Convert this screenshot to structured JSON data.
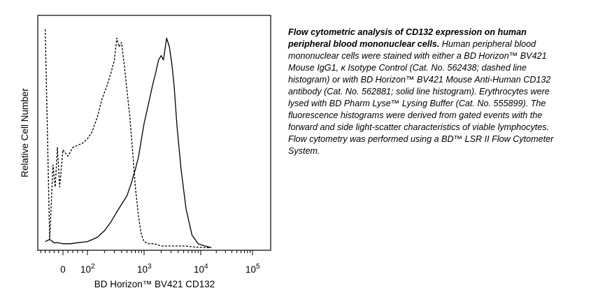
{
  "chart_data": {
    "type": "line",
    "title": "",
    "xlabel": "BD Horizon™ BV421 CD132",
    "ylabel": "Relative Cell Number",
    "x_scale": "biexponential",
    "x_tick_labels": [
      {
        "value": 0,
        "text": "0"
      },
      {
        "value": 100,
        "base": "10",
        "exp": "2"
      },
      {
        "value": 1000,
        "base": "10",
        "exp": "3"
      },
      {
        "value": 10000,
        "base": "10",
        "exp": "4"
      },
      {
        "value": 100000,
        "base": "10",
        "exp": "5"
      }
    ],
    "y_ticks": false,
    "grid": false,
    "legend": "none",
    "series": [
      {
        "style": "dashed",
        "x": [
          -80,
          -60,
          -45,
          -35,
          -25,
          -15,
          0,
          20,
          40,
          60,
          80,
          100,
          120,
          150,
          180,
          220,
          260,
          300,
          330,
          360,
          400,
          450,
          500,
          560,
          620,
          700,
          800,
          900,
          1000,
          1200,
          1500,
          2000,
          3000,
          5000,
          8000,
          12000,
          16000
        ],
        "y": [
          100,
          4,
          38,
          28,
          46,
          28,
          45,
          42,
          46,
          47,
          48,
          50,
          53,
          60,
          68,
          74,
          80,
          86,
          96,
          92,
          94,
          83,
          72,
          60,
          46,
          28,
          14,
          6,
          3,
          2,
          2,
          1,
          1,
          1,
          0.5,
          0.3,
          0.2
        ]
      },
      {
        "style": "solid",
        "x": [
          -80,
          -60,
          -40,
          -20,
          0,
          30,
          60,
          100,
          150,
          200,
          260,
          320,
          400,
          500,
          600,
          700,
          800,
          900,
          1000,
          1200,
          1400,
          1600,
          1800,
          2000,
          2200,
          2500,
          2800,
          3100,
          3400,
          3800,
          4500,
          5500,
          7000,
          9000,
          12000,
          16000
        ],
        "y": [
          3,
          4,
          2.5,
          2.5,
          2,
          2,
          2.5,
          3,
          5,
          8,
          12,
          16,
          20,
          24,
          30,
          36,
          42,
          50,
          57,
          66,
          74,
          80,
          86,
          88,
          86,
          96,
          92,
          84,
          74,
          56,
          36,
          18,
          6,
          2,
          1,
          0.3
        ]
      }
    ]
  },
  "caption": {
    "lead": "Flow cytometric analysis of CD132 expression on human peripheral blood mononuclear cells.",
    "body": " Human peripheral blood mononuclear cells were stained with either a BD Horizon™ BV421  Mouse IgG1, κ Isotype Control (Cat. No. 562438; dashed line histogram) or with BD Horizon™ BV421 Mouse Anti-Human CD132 antibody (Cat. No. 562881; solid line histogram). Erythrocytes were lysed with BD Pharm Lyse™ Lysing Buffer (Cat. No. 555899). The fluorescence histograms were derived from gated events with the forward and side light-scatter characteristics of viable lymphocytes. Flow cytometry was performed using a BD™ LSR II Flow Cytometer System."
  }
}
